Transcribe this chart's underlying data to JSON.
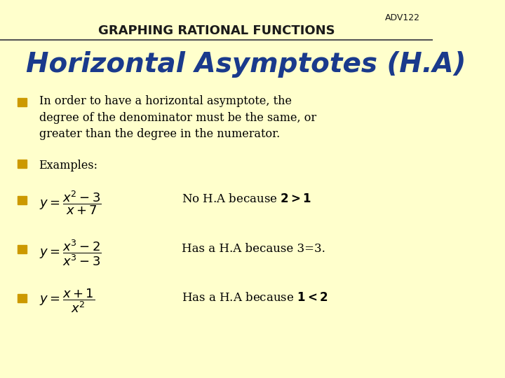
{
  "bg_color": "#FFFFCC",
  "header_text": "GRAPHING RATIONAL FUNCTIONS",
  "adv_text": "ADV122",
  "title_text": "Horizontal Asymptotes (H.A)",
  "title_color": "#1a3a8c",
  "header_color": "#1a1a1a",
  "bullet_color": "#cc9900",
  "body_color": "#000000",
  "line_color": "#555555",
  "bullet1": "In order to have a horizontal asymptote, the\ndegree of the denominator must be the same, or\ngreater than the degree in the numerator.",
  "bullet2": "Examples:",
  "eq1_desc": "No H.A because $\\mathbf{2 > 1}$",
  "eq2_desc": "Has a H.A because 3=3.",
  "eq3_desc": "Has a H.A because $\\mathbf{1 < 2}$"
}
